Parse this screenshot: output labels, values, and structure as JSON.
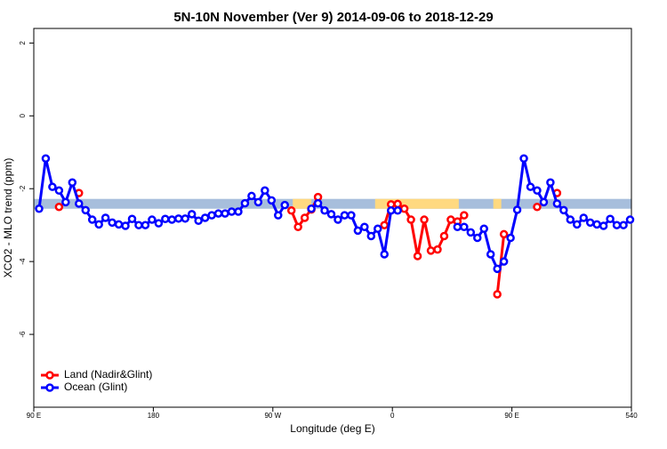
{
  "chart_data": {
    "type": "line",
    "title": "5N-10N November (Ver 9)   2014-09-06 to 2018-12-29",
    "x_label": "Longitude (deg E)",
    "y_label": "XCO2 - MLO trend (ppm)",
    "xlim": [
      90,
      540
    ],
    "ylim": [
      -8,
      2.4
    ],
    "xticks": [
      {
        "value": 90,
        "label": "90 E"
      },
      180,
      {
        "value": 270,
        "label": "90 W"
      },
      {
        "value": 360,
        "label": "0"
      },
      {
        "value": 450,
        "label": "90 E"
      },
      540
    ],
    "yticks": [
      -6,
      -4,
      -2,
      0,
      2
    ],
    "legend": "bottom-left",
    "band": {
      "range": [
        -2.55,
        -2.28
      ],
      "color": "#a7bedc"
    },
    "shading": {
      "color": "#ffd980",
      "spans": [
        [
          285,
          299
        ],
        [
          347,
          410
        ],
        [
          436,
          442
        ]
      ]
    },
    "x": [
      94,
      99,
      104,
      109,
      114,
      119,
      124,
      129,
      134,
      139,
      144,
      149,
      154,
      159,
      164,
      169,
      174,
      179,
      184,
      189,
      194,
      199,
      204,
      209,
      214,
      219,
      224,
      229,
      234,
      239,
      244,
      249,
      254,
      259,
      264,
      269,
      274,
      279,
      284,
      289,
      294,
      299,
      304,
      309,
      314,
      319,
      324,
      329,
      334,
      339,
      344,
      349,
      354,
      359,
      364,
      369,
      374,
      379,
      384,
      389,
      394,
      399,
      404,
      409,
      414,
      419,
      424,
      429,
      434,
      439,
      444,
      449,
      454,
      459,
      464,
      469,
      474,
      479,
      484,
      489,
      494,
      499,
      504,
      509,
      514,
      519,
      524,
      529,
      534,
      539
    ],
    "series": [
      {
        "name": "Land (Nadir&Glint)",
        "color": "#ff0000",
        "values": [
          null,
          null,
          null,
          -2.5,
          null,
          null,
          -2.12,
          null,
          null,
          null,
          null,
          null,
          null,
          null,
          null,
          null,
          null,
          null,
          null,
          null,
          null,
          null,
          null,
          null,
          null,
          null,
          null,
          null,
          null,
          null,
          null,
          null,
          null,
          null,
          null,
          null,
          null,
          null,
          -2.6,
          -3.05,
          -2.8,
          -2.57,
          -2.23,
          null,
          null,
          null,
          null,
          null,
          null,
          null,
          null,
          null,
          -3.0,
          -2.43,
          -2.42,
          -2.55,
          -2.85,
          -3.85,
          -2.85,
          -3.7,
          -3.67,
          -3.3,
          -2.85,
          -2.9,
          -2.73,
          null,
          null,
          null,
          null,
          -4.9,
          -3.25,
          null,
          null,
          null,
          null,
          -2.5,
          null,
          null,
          -2.12,
          null,
          null,
          null,
          null,
          null,
          null,
          null,
          null,
          null,
          null,
          null
        ]
      },
      {
        "name": "Ocean (Glint)",
        "color": "#0000ff",
        "values": [
          -2.55,
          -1.17,
          -1.95,
          -2.05,
          -2.37,
          -1.83,
          -2.41,
          -2.59,
          -2.85,
          -2.98,
          -2.8,
          -2.93,
          -2.98,
          -3.02,
          -2.83,
          -3.0,
          -3.0,
          -2.85,
          -2.95,
          -2.83,
          -2.85,
          -2.82,
          -2.82,
          -2.7,
          -2.88,
          -2.8,
          -2.73,
          -2.68,
          -2.68,
          -2.63,
          -2.63,
          -2.4,
          -2.2,
          -2.37,
          -2.05,
          -2.32,
          -2.73,
          -2.45,
          null,
          null,
          null,
          -2.55,
          -2.4,
          -2.6,
          -2.7,
          -2.85,
          -2.73,
          -2.73,
          -3.15,
          -3.05,
          -3.3,
          -3.1,
          -3.8,
          -2.6,
          -2.6,
          null,
          null,
          null,
          null,
          null,
          null,
          null,
          null,
          -3.05,
          -3.05,
          -3.2,
          -3.35,
          -3.1,
          -3.8,
          -4.2,
          -4.0,
          -3.35,
          -2.58,
          -1.17,
          -1.95,
          -2.05,
          -2.37,
          -1.83,
          -2.41,
          -2.59,
          -2.85,
          -2.98,
          -2.8,
          -2.93,
          -2.98,
          -3.02,
          -2.83,
          -3.0,
          -3.0,
          -2.85
        ]
      }
    ]
  }
}
